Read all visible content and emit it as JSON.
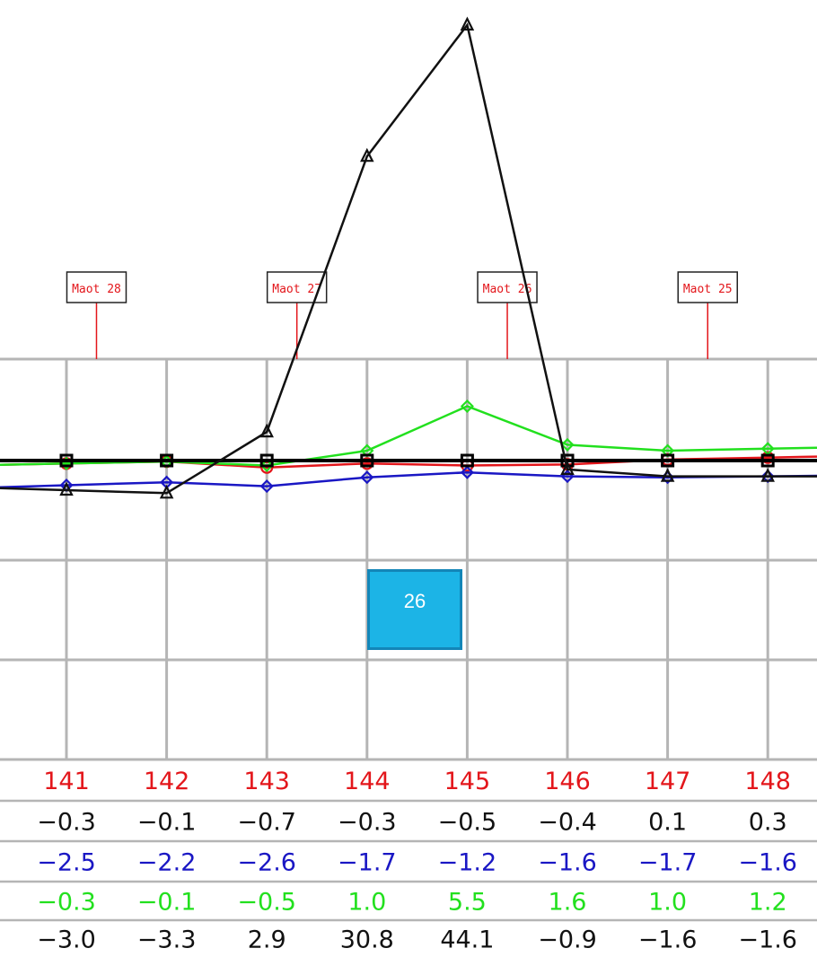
{
  "chart_data": {
    "type": "line",
    "x": [
      141,
      142,
      143,
      144,
      145,
      146,
      147,
      148
    ],
    "markers": [
      {
        "label": "Maot 28",
        "at": 141.3
      },
      {
        "label": "Maot 27",
        "at": 143.3
      },
      {
        "label": "Maot 26",
        "at": 145.4
      },
      {
        "label": "Maot 25",
        "at": 147.4
      }
    ],
    "series": [
      {
        "color": "#e3161b",
        "marker": "circle",
        "values": [
          -0.3,
          -0.1,
          -0.7,
          -0.3,
          -0.5,
          -0.4,
          0.1,
          0.3
        ]
      },
      {
        "color": "#1a17c4",
        "marker": "diamond",
        "values": [
          -2.5,
          -2.2,
          -2.6,
          -1.7,
          -1.2,
          -1.6,
          -1.7,
          -1.6
        ]
      },
      {
        "color": "#22e01e",
        "marker": "diamond",
        "values": [
          -0.3,
          -0.1,
          -0.5,
          1.0,
          5.5,
          1.6,
          1.0,
          1.2
        ]
      },
      {
        "color": "#111111",
        "marker": "triangle",
        "values": [
          -3.0,
          -3.3,
          2.9,
          30.8,
          44.1,
          -0.9,
          -1.6,
          -1.6
        ]
      },
      {
        "color": "#000000",
        "marker": "square",
        "values": [
          0,
          0,
          0,
          0,
          0,
          0,
          0,
          0
        ]
      }
    ],
    "table_rows": [
      {
        "color": "#e3161b",
        "values": [
          "141",
          "142",
          "143",
          "144",
          "145",
          "146",
          "147",
          "148"
        ]
      },
      {
        "color": "#111111",
        "values": [
          "−0.3",
          "−0.1",
          "−0.7",
          "−0.3",
          "−0.5",
          "−0.4",
          "0.1",
          "0.3"
        ]
      },
      {
        "color": "#1a17c4",
        "values": [
          "−2.5",
          "−2.2",
          "−2.6",
          "−1.7",
          "−1.2",
          "−1.6",
          "−1.7",
          "−1.6"
        ]
      },
      {
        "color": "#22e01e",
        "values": [
          "−0.3",
          "−0.1",
          "−0.5",
          "1.0",
          "5.5",
          "1.6",
          "1.0",
          "1.2"
        ]
      },
      {
        "color": "#111111",
        "values": [
          "−3.0",
          "−3.3",
          "2.9",
          "30.8",
          "44.1",
          "−0.9",
          "−1.6",
          "−1.6"
        ]
      }
    ],
    "grid": true
  },
  "selection": {
    "label": "26"
  }
}
